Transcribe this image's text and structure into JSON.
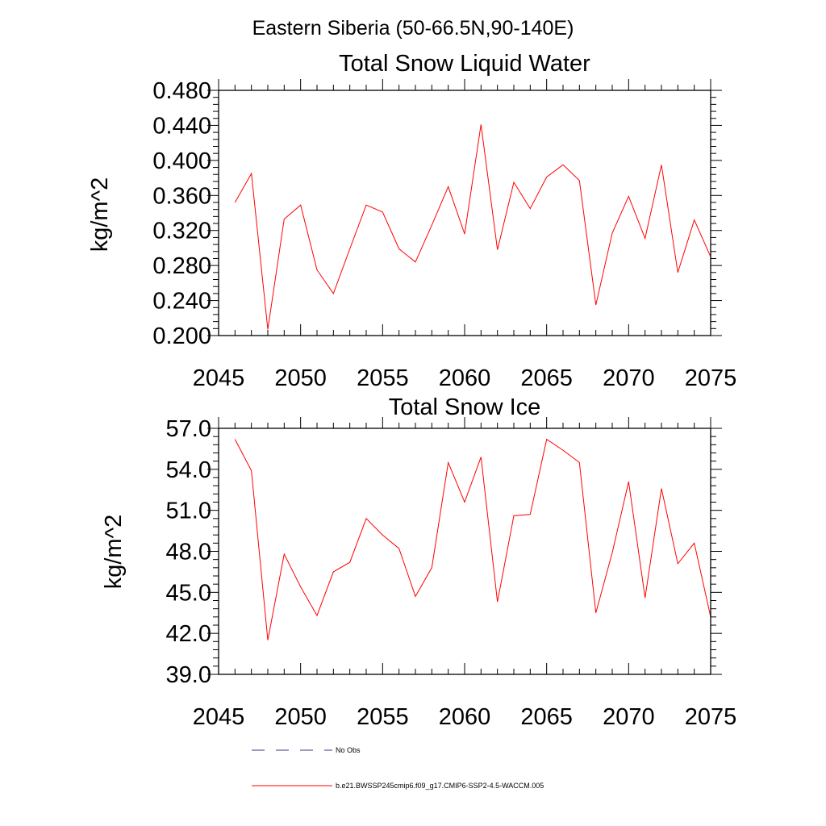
{
  "figure": {
    "suptitle": "Eastern Siberia (50-66.5N,90-140E)"
  },
  "chart_data": [
    {
      "type": "line",
      "title": "Total Snow Liquid Water",
      "xlabel": "",
      "ylabel": "kg/m^2",
      "xlim": [
        2045,
        2075
      ],
      "ylim": [
        0.2,
        0.48
      ],
      "x_ticks": [
        2045,
        2050,
        2055,
        2060,
        2065,
        2070,
        2075
      ],
      "y_ticks": [
        "0.200",
        "0.240",
        "0.280",
        "0.320",
        "0.360",
        "0.400",
        "0.440",
        "0.480"
      ],
      "y_tick_values": [
        0.2,
        0.24,
        0.28,
        0.32,
        0.36,
        0.4,
        0.44,
        0.48
      ],
      "grid": false,
      "x": [
        2046,
        2047,
        2048,
        2049,
        2050,
        2051,
        2052,
        2053,
        2054,
        2055,
        2056,
        2057,
        2058,
        2059,
        2060,
        2061,
        2062,
        2063,
        2064,
        2065,
        2066,
        2067,
        2068,
        2069,
        2070,
        2071,
        2072,
        2073,
        2074,
        2075
      ],
      "series": [
        {
          "name": "b.e21.BWSSP245cmip6.f09_g17.CMIP6-SSP2-4.5-WACCM.005",
          "color": "#ff0000",
          "values": [
            0.352,
            0.385,
            0.207,
            0.333,
            0.349,
            0.275,
            0.248,
            0.299,
            0.349,
            0.341,
            0.299,
            0.284,
            0.326,
            0.37,
            0.316,
            0.441,
            0.298,
            0.375,
            0.345,
            0.381,
            0.395,
            0.377,
            0.235,
            0.317,
            0.359,
            0.311,
            0.395,
            0.272,
            0.332,
            0.29
          ]
        }
      ]
    },
    {
      "type": "line",
      "title": "Total Snow Ice",
      "xlabel": "",
      "ylabel": "kg/m^2",
      "xlim": [
        2045,
        2075
      ],
      "ylim": [
        39.0,
        57.0
      ],
      "x_ticks": [
        2045,
        2050,
        2055,
        2060,
        2065,
        2070,
        2075
      ],
      "y_ticks": [
        "39.0",
        "42.0",
        "45.0",
        "48.0",
        "51.0",
        "54.0",
        "57.0"
      ],
      "y_tick_values": [
        39,
        42,
        45,
        48,
        51,
        54,
        57
      ],
      "grid": false,
      "x": [
        2046,
        2047,
        2048,
        2049,
        2050,
        2051,
        2052,
        2053,
        2054,
        2055,
        2056,
        2057,
        2058,
        2059,
        2060,
        2061,
        2062,
        2063,
        2064,
        2065,
        2066,
        2067,
        2068,
        2069,
        2070,
        2071,
        2072,
        2073,
        2074,
        2075
      ],
      "series": [
        {
          "name": "b.e21.BWSSP245cmip6.f09_g17.CMIP6-SSP2-4.5-WACCM.005",
          "color": "#ff0000",
          "values": [
            56.2,
            53.9,
            41.5,
            47.8,
            45.4,
            43.3,
            46.5,
            47.2,
            50.4,
            49.2,
            48.2,
            44.7,
            46.8,
            54.5,
            51.6,
            54.9,
            44.3,
            50.6,
            50.7,
            56.2,
            55.4,
            54.5,
            43.5,
            47.9,
            53.1,
            44.6,
            52.6,
            47.1,
            48.6,
            43.2
          ]
        }
      ]
    }
  ],
  "legend": {
    "placement": "bottom",
    "items": [
      {
        "label": "No Obs",
        "style": "dashed",
        "color": "#3a3a7a"
      },
      {
        "label": "b.e21.BWSSP245cmip6.f09_g17.CMIP6-SSP2-4.5-WACCM.005",
        "style": "solid",
        "color": "#ff0000"
      }
    ]
  }
}
